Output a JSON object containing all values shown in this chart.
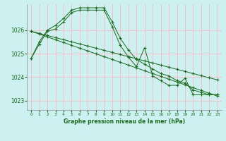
{
  "bg_color": "#cdf0f0",
  "grid_color": "#ffb6c1",
  "line_color": "#1a6b1a",
  "xlabel": "Graphe pression niveau de la mer (hPa)",
  "ylim": [
    1022.6,
    1027.1
  ],
  "xlim": [
    -0.5,
    23.5
  ],
  "yticks": [
    1023,
    1024,
    1025,
    1026
  ],
  "xticks": [
    0,
    1,
    2,
    3,
    4,
    5,
    6,
    7,
    8,
    9,
    10,
    11,
    12,
    13,
    14,
    15,
    16,
    17,
    18,
    19,
    20,
    21,
    22,
    23
  ],
  "series": [
    [
      1024.8,
      1025.4,
      1025.95,
      1026.05,
      1026.35,
      1026.75,
      1026.85,
      1026.85,
      1026.85,
      1026.85,
      1026.15,
      1025.35,
      1024.85,
      1024.45,
      1025.25,
      1024.05,
      1023.85,
      1023.65,
      1023.65,
      1023.95,
      1023.25,
      1023.25,
      1023.25,
      1023.25
    ],
    [
      1025.95,
      1025.86,
      1025.77,
      1025.68,
      1025.59,
      1025.5,
      1025.41,
      1025.32,
      1025.23,
      1025.14,
      1025.05,
      1024.96,
      1024.87,
      1024.78,
      1024.69,
      1024.6,
      1024.51,
      1024.42,
      1024.33,
      1024.24,
      1024.15,
      1024.06,
      1023.97,
      1023.88
    ],
    [
      1025.95,
      1025.83,
      1025.71,
      1025.59,
      1025.47,
      1025.35,
      1025.23,
      1025.11,
      1024.99,
      1024.87,
      1024.75,
      1024.63,
      1024.51,
      1024.39,
      1024.27,
      1024.15,
      1024.03,
      1023.91,
      1023.79,
      1023.67,
      1023.55,
      1023.43,
      1023.31,
      1023.19
    ],
    [
      1024.8,
      1025.5,
      1026.0,
      1026.2,
      1026.5,
      1026.85,
      1026.95,
      1026.95,
      1026.95,
      1026.95,
      1026.35,
      1025.65,
      1025.15,
      1024.75,
      1024.55,
      1024.35,
      1024.15,
      1024.05,
      1023.85,
      1023.75,
      1023.45,
      1023.35,
      1023.25,
      1023.25
    ]
  ]
}
